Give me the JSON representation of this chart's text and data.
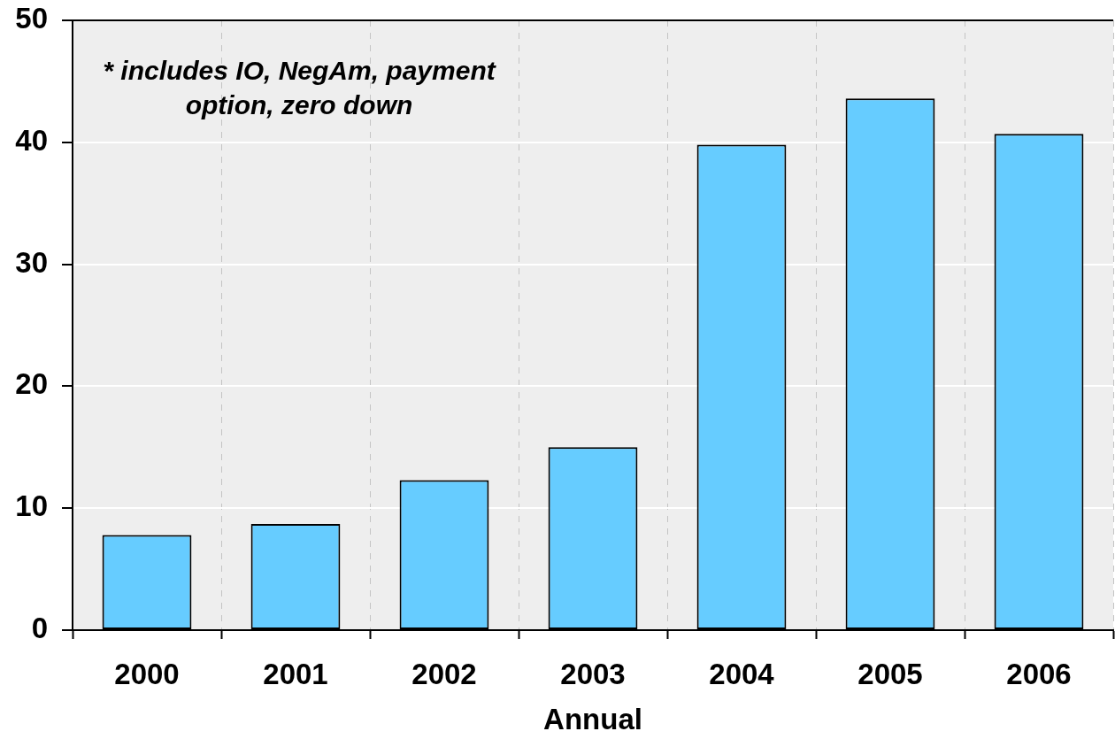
{
  "chart_data": {
    "type": "bar",
    "xlabel": "Annual",
    "annotations": [
      "* includes IO, NegAm, payment option, zero down"
    ],
    "categories": [
      "2000",
      "2001",
      "2002",
      "2003",
      "2004",
      "2005",
      "2006"
    ],
    "values": [
      7.8,
      8.7,
      12.3,
      15.0,
      39.8,
      43.6,
      40.7
    ],
    "color": "#66ccff",
    "ylim": [
      0,
      50
    ],
    "yticks": [
      0,
      10,
      20,
      30,
      40,
      50
    ],
    "grid": true
  }
}
